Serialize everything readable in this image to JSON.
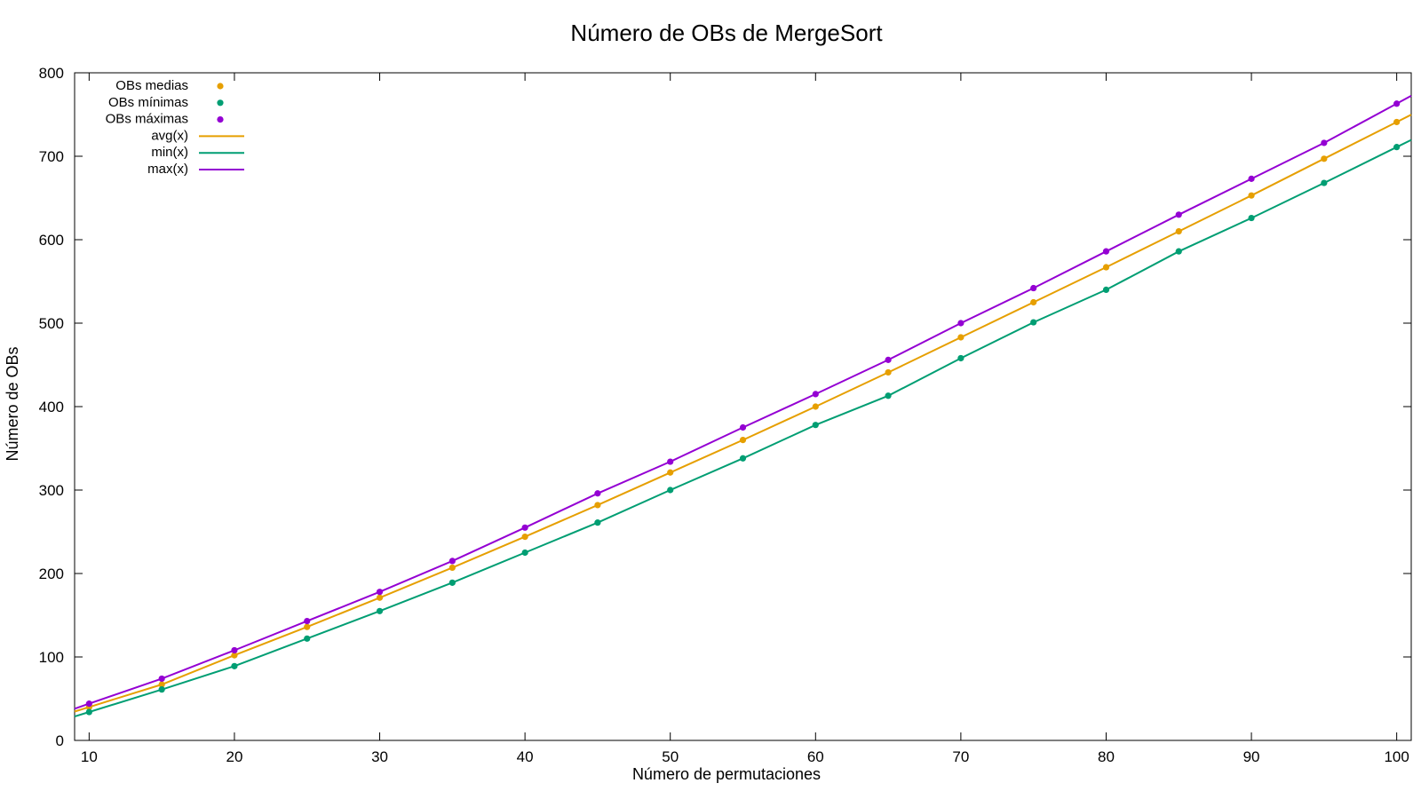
{
  "chart_data": {
    "type": "line",
    "title": "Número de OBs de MergeSort",
    "xlabel": "Número de permutaciones",
    "ylabel": "Número de OBs",
    "xlim": [
      9,
      101
    ],
    "ylim": [
      0,
      800
    ],
    "xticks": [
      10,
      20,
      30,
      40,
      50,
      60,
      70,
      80,
      90,
      100
    ],
    "yticks": [
      0,
      100,
      200,
      300,
      400,
      500,
      600,
      700,
      800
    ],
    "grid": false,
    "legend_position": "top-left",
    "x": [
      10,
      15,
      20,
      25,
      30,
      35,
      40,
      45,
      50,
      55,
      60,
      65,
      70,
      75,
      80,
      85,
      90,
      95,
      100
    ],
    "series": [
      {
        "name": "OBs medias",
        "kind": "points",
        "color": "#e69f00",
        "values": [
          40,
          67,
          102,
          136,
          171,
          207,
          244,
          282,
          321,
          360,
          400,
          441,
          483,
          525,
          567,
          610,
          653,
          697,
          741
        ]
      },
      {
        "name": "OBs mínimas",
        "kind": "points",
        "color": "#009e73",
        "values": [
          34,
          61,
          89,
          122,
          155,
          189,
          225,
          261,
          300,
          338,
          378,
          413,
          458,
          501,
          540,
          586,
          626,
          668,
          711
        ]
      },
      {
        "name": "OBs máximas",
        "kind": "points",
        "color": "#9400d3",
        "values": [
          44,
          74,
          108,
          143,
          178,
          215,
          255,
          296,
          334,
          375,
          415,
          456,
          500,
          542,
          586,
          630,
          673,
          716,
          763
        ]
      },
      {
        "name": "avg(x)",
        "kind": "line",
        "color": "#e69f00",
        "values": [
          40,
          67,
          102,
          136,
          171,
          207,
          244,
          282,
          321,
          360,
          400,
          441,
          483,
          525,
          567,
          610,
          653,
          697,
          741
        ]
      },
      {
        "name": "min(x)",
        "kind": "line",
        "color": "#009e73",
        "values": [
          34,
          61,
          89,
          122,
          155,
          189,
          225,
          261,
          300,
          338,
          378,
          413,
          458,
          501,
          540,
          586,
          626,
          668,
          711
        ]
      },
      {
        "name": "max(x)",
        "kind": "line",
        "color": "#9400d3",
        "values": [
          44,
          74,
          108,
          143,
          178,
          215,
          255,
          296,
          334,
          375,
          415,
          456,
          500,
          542,
          586,
          630,
          673,
          716,
          763
        ]
      }
    ]
  }
}
